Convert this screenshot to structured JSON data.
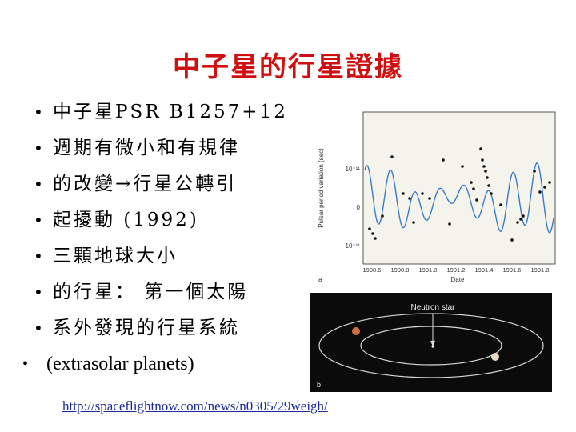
{
  "title": "中子星的行星證據",
  "bullets": [
    "中子星PSR B1257+12",
    "週期有微小和有規律",
    "的改變→行星公轉引",
    "起擾動 (1992)",
    "三顆地球大小",
    "的行星： 第一個太陽",
    "系外發現的行星系統"
  ],
  "bullet_last": "(extrasolar planets)",
  "bullet_glyph": "•",
  "link": "http://spaceflightnow.com/news/n0305/29weigh/",
  "figure_a": {
    "panel_label": "a",
    "ylabel": "Pulsar period variation (sec)",
    "xlabel": "Date",
    "y_ticks": [
      "10⁻¹¹",
      "0",
      "−10⁻¹¹"
    ],
    "x_ticks": [
      "1990.6",
      "1990.8",
      "1991.0",
      "1991.2",
      "1991.4",
      "1991.6",
      "1991.8"
    ],
    "curve_color": "#3a7bc8",
    "background": "#f4f4ec"
  },
  "figure_b": {
    "panel_label": "b",
    "star_label": "Neutron star",
    "background": "#0b0b0b"
  }
}
